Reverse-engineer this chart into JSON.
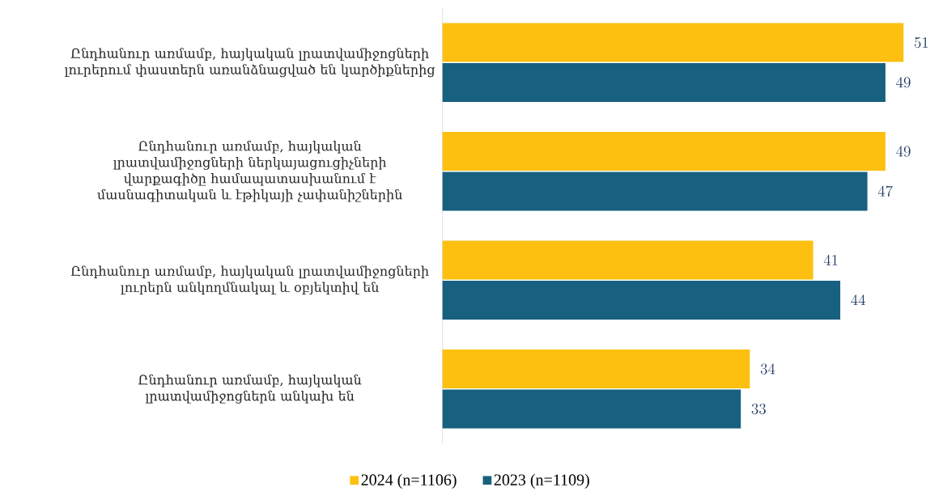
{
  "chart_data": {
    "type": "bar",
    "orientation": "horizontal",
    "categories": [
      "Ընդհանուր առմամբ, հայկական լրատվամիջոցների լուրերում փաստերն առանձնացված են կարծիքներից",
      "Ընդհանուր առմամբ, հայկական լրատվամիջոցների ներկայացուցիչների վարքագիծը համապատասխանում է մասնագիտական և էթիկայի չափանիշներին",
      "Ընդհանուր առմամբ, հայկական լրատվամիջոցների լուրերն անկողմնակալ և օբյեկտիվ են",
      "Ընդհանուր առմամբ, հայկական լրատվամիջոցներն անկախ են"
    ],
    "series": [
      {
        "name": "2024 (n=1106)",
        "color": "#fdc010",
        "values": [
          51,
          49,
          41,
          34
        ]
      },
      {
        "name": "2023 (n=1109)",
        "color": "#17607f",
        "values": [
          49,
          47,
          44,
          33
        ]
      }
    ],
    "data_labels": true,
    "legend": "bottom"
  }
}
